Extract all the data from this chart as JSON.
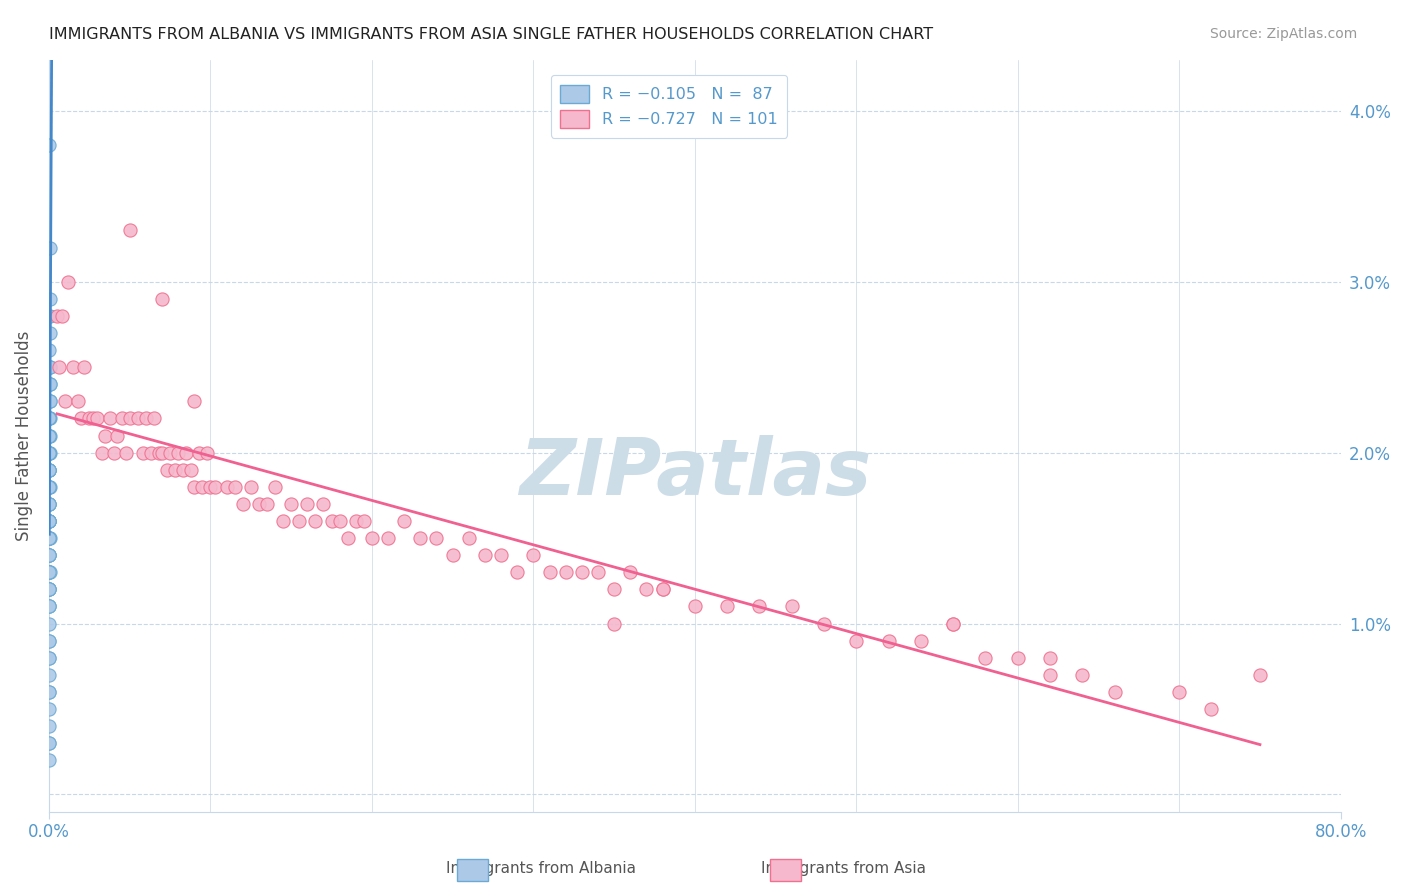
{
  "title": "IMMIGRANTS FROM ALBANIA VS IMMIGRANTS FROM ASIA SINGLE FATHER HOUSEHOLDS CORRELATION CHART",
  "source": "Source: ZipAtlas.com",
  "ylabel": "Single Father Households",
  "legend_label_albania": "Immigrants from Albania",
  "legend_label_asia": "Immigrants from Asia",
  "albania_color": "#adc9e8",
  "albania_edge_color": "#6baad4",
  "albania_line_color": "#4488cc",
  "asia_color": "#f5b8cc",
  "asia_edge_color": "#f07090",
  "asia_line_color": "#f06090",
  "watermark": "ZIPatlas",
  "watermark_color": "#ccdde8",
  "albania_x": [
    0.0002,
    0.0005,
    0.0008,
    0.0003,
    0.0006,
    0.0004,
    0.0002,
    0.0007,
    0.0003,
    0.0009,
    0.0002,
    0.0005,
    0.0002,
    0.0004,
    0.0007,
    0.0002,
    0.0004,
    0.0006,
    0.0002,
    0.0003,
    0.0002,
    0.0003,
    0.0002,
    0.0005,
    0.0003,
    0.0002,
    0.0002,
    0.0003,
    0.0002,
    0.0005,
    0.0003,
    0.0002,
    0.0003,
    0.0002,
    0.0003,
    0.0002,
    0.0002,
    0.0003,
    0.0002,
    0.0005,
    0.0002,
    0.0003,
    0.0002,
    0.0003,
    0.0002,
    0.0003,
    0.0002,
    0.0003,
    0.0002,
    0.0003,
    0.0002,
    0.0003,
    0.0002,
    0.0004,
    0.0003,
    0.0002,
    0.0003,
    0.0002,
    0.0003,
    0.0002,
    0.0003,
    0.0002,
    0.0002,
    0.0003,
    0.0002,
    0.0004,
    0.0003,
    0.0002,
    0.0003,
    0.0002,
    0.0003,
    0.0002,
    0.0002,
    0.0003,
    0.0002,
    0.0002,
    0.0003,
    0.0002,
    0.0003,
    0.0002,
    0.0002,
    0.0003,
    0.0002,
    0.0002,
    0.0002,
    0.0003,
    0.0002
  ],
  "albania_y": [
    0.038,
    0.032,
    0.029,
    0.028,
    0.028,
    0.027,
    0.026,
    0.025,
    0.025,
    0.025,
    0.024,
    0.024,
    0.024,
    0.024,
    0.023,
    0.023,
    0.023,
    0.022,
    0.022,
    0.022,
    0.022,
    0.022,
    0.021,
    0.021,
    0.021,
    0.021,
    0.021,
    0.02,
    0.02,
    0.02,
    0.02,
    0.02,
    0.02,
    0.019,
    0.019,
    0.019,
    0.019,
    0.019,
    0.018,
    0.018,
    0.018,
    0.018,
    0.018,
    0.017,
    0.017,
    0.017,
    0.017,
    0.016,
    0.016,
    0.016,
    0.016,
    0.016,
    0.016,
    0.015,
    0.015,
    0.015,
    0.015,
    0.015,
    0.014,
    0.014,
    0.014,
    0.014,
    0.013,
    0.013,
    0.013,
    0.013,
    0.013,
    0.012,
    0.012,
    0.012,
    0.012,
    0.011,
    0.011,
    0.011,
    0.01,
    0.009,
    0.009,
    0.008,
    0.008,
    0.007,
    0.006,
    0.006,
    0.005,
    0.004,
    0.003,
    0.003,
    0.002
  ],
  "asia_x": [
    0.005,
    0.006,
    0.008,
    0.01,
    0.012,
    0.015,
    0.018,
    0.02,
    0.022,
    0.025,
    0.027,
    0.03,
    0.033,
    0.035,
    0.038,
    0.04,
    0.042,
    0.045,
    0.048,
    0.05,
    0.055,
    0.058,
    0.06,
    0.063,
    0.065,
    0.068,
    0.07,
    0.073,
    0.075,
    0.078,
    0.08,
    0.083,
    0.085,
    0.088,
    0.09,
    0.093,
    0.095,
    0.098,
    0.1,
    0.103,
    0.11,
    0.115,
    0.12,
    0.125,
    0.13,
    0.135,
    0.14,
    0.145,
    0.15,
    0.155,
    0.16,
    0.165,
    0.17,
    0.175,
    0.18,
    0.185,
    0.19,
    0.195,
    0.2,
    0.21,
    0.22,
    0.23,
    0.24,
    0.25,
    0.26,
    0.27,
    0.28,
    0.29,
    0.3,
    0.31,
    0.32,
    0.33,
    0.34,
    0.35,
    0.36,
    0.37,
    0.38,
    0.4,
    0.42,
    0.44,
    0.05,
    0.07,
    0.09,
    0.35,
    0.38,
    0.46,
    0.48,
    0.5,
    0.52,
    0.54,
    0.56,
    0.58,
    0.6,
    0.62,
    0.64,
    0.66,
    0.7,
    0.72,
    0.75,
    0.56,
    0.62
  ],
  "asia_y": [
    0.028,
    0.025,
    0.028,
    0.023,
    0.03,
    0.025,
    0.023,
    0.022,
    0.025,
    0.022,
    0.022,
    0.022,
    0.02,
    0.021,
    0.022,
    0.02,
    0.021,
    0.022,
    0.02,
    0.022,
    0.022,
    0.02,
    0.022,
    0.02,
    0.022,
    0.02,
    0.02,
    0.019,
    0.02,
    0.019,
    0.02,
    0.019,
    0.02,
    0.019,
    0.018,
    0.02,
    0.018,
    0.02,
    0.018,
    0.018,
    0.018,
    0.018,
    0.017,
    0.018,
    0.017,
    0.017,
    0.018,
    0.016,
    0.017,
    0.016,
    0.017,
    0.016,
    0.017,
    0.016,
    0.016,
    0.015,
    0.016,
    0.016,
    0.015,
    0.015,
    0.016,
    0.015,
    0.015,
    0.014,
    0.015,
    0.014,
    0.014,
    0.013,
    0.014,
    0.013,
    0.013,
    0.013,
    0.013,
    0.012,
    0.013,
    0.012,
    0.012,
    0.011,
    0.011,
    0.011,
    0.033,
    0.029,
    0.023,
    0.01,
    0.012,
    0.011,
    0.01,
    0.009,
    0.009,
    0.009,
    0.01,
    0.008,
    0.008,
    0.007,
    0.007,
    0.006,
    0.006,
    0.005,
    0.007,
    0.01,
    0.008
  ],
  "xlim": [
    0.0,
    0.8
  ],
  "ylim": [
    -0.001,
    0.043
  ],
  "y_ticks": [
    0.0,
    0.01,
    0.02,
    0.03,
    0.04
  ],
  "y_tick_labels_right": [
    "",
    "1.0%",
    "2.0%",
    "3.0%",
    "4.0%"
  ],
  "title_color": "#222222",
  "tick_color": "#5599cc",
  "grid_color": "#c8d8e8",
  "source_color": "#999999"
}
